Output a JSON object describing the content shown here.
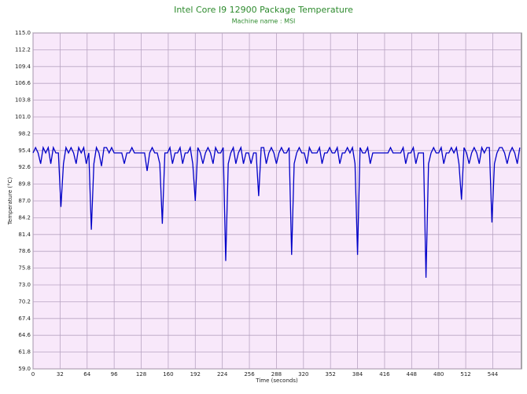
{
  "chart_data": {
    "type": "line",
    "title": "Intel Core I9 12900 Package Temperature",
    "subtitle": "Machine name : MSI",
    "xlabel": "Time (seconds)",
    "ylabel": "Temperature (°C)",
    "color": "#0000c8",
    "grid": true,
    "xlim": [
      0,
      578
    ],
    "ylim": [
      59,
      115
    ],
    "xticks": [
      0,
      32,
      64,
      96,
      128,
      160,
      192,
      224,
      256,
      288,
      320,
      352,
      384,
      416,
      448,
      480,
      512,
      544
    ],
    "yticks": [
      {
        "value": 59,
        "label": "59.0"
      },
      61.8,
      64.6,
      67.4,
      70.2,
      {
        "value": 73,
        "label": "73.0"
      },
      75.8,
      78.6,
      81.4,
      84.2,
      {
        "value": 87,
        "label": "87.0"
      },
      89.8,
      92.6,
      95.4,
      98.2,
      {
        "value": 101,
        "label": "101.0"
      },
      103.8,
      106.6,
      109.4,
      112.2,
      {
        "value": 115,
        "label": "115.0"
      }
    ],
    "x": [
      0,
      3,
      6,
      9,
      12,
      15,
      18,
      21,
      24,
      27,
      30,
      33,
      36,
      39,
      42,
      45,
      48,
      51,
      54,
      57,
      60,
      63,
      66,
      69,
      72,
      75,
      78,
      81,
      84,
      87,
      90,
      93,
      96,
      99,
      102,
      105,
      108,
      111,
      114,
      117,
      120,
      123,
      126,
      129,
      132,
      135,
      138,
      141,
      144,
      147,
      150,
      153,
      156,
      159,
      162,
      165,
      168,
      171,
      174,
      177,
      180,
      183,
      186,
      189,
      192,
      195,
      198,
      201,
      204,
      207,
      210,
      213,
      216,
      219,
      222,
      225,
      228,
      231,
      234,
      237,
      240,
      243,
      246,
      249,
      252,
      255,
      258,
      261,
      264,
      267,
      270,
      273,
      276,
      279,
      282,
      285,
      288,
      291,
      294,
      297,
      300,
      303,
      306,
      309,
      312,
      315,
      318,
      321,
      324,
      327,
      330,
      333,
      336,
      339,
      342,
      345,
      348,
      351,
      354,
      357,
      360,
      363,
      366,
      369,
      372,
      375,
      378,
      381,
      384,
      387,
      390,
      393,
      396,
      399,
      402,
      405,
      408,
      411,
      414,
      417,
      420,
      423,
      426,
      429,
      432,
      435,
      438,
      441,
      444,
      447,
      450,
      453,
      456,
      459,
      462,
      465,
      468,
      471,
      474,
      477,
      480,
      483,
      486,
      489,
      492,
      495,
      498,
      501,
      504,
      507,
      510,
      513,
      516,
      519,
      522,
      525,
      528,
      531,
      534,
      537,
      540,
      543,
      546,
      549,
      552,
      555,
      558,
      561,
      564,
      567,
      570,
      573,
      576
    ],
    "values": [
      95.0,
      95.9,
      95.0,
      93.2,
      95.9,
      95.0,
      95.9,
      93.2,
      95.9,
      95.0,
      95.0,
      86.0,
      93.2,
      95.9,
      95.0,
      95.9,
      95.0,
      93.2,
      95.9,
      95.0,
      95.9,
      93.2,
      95.0,
      82.2,
      93.2,
      95.9,
      95.0,
      92.8,
      95.9,
      95.9,
      95.0,
      95.9,
      95.0,
      95.0,
      95.0,
      95.0,
      93.2,
      95.0,
      95.0,
      95.9,
      95.0,
      95.0,
      95.0,
      95.0,
      95.0,
      92.0,
      95.0,
      95.9,
      95.0,
      95.0,
      93.2,
      83.2,
      95.0,
      95.0,
      95.9,
      93.2,
      95.0,
      95.0,
      95.9,
      93.2,
      95.0,
      95.0,
      95.9,
      93.2,
      87.0,
      95.9,
      95.0,
      93.2,
      95.0,
      95.9,
      95.0,
      93.2,
      95.9,
      95.0,
      95.0,
      95.9,
      77.0,
      93.2,
      95.0,
      95.9,
      93.2,
      95.0,
      95.9,
      93.2,
      95.0,
      95.0,
      93.2,
      95.0,
      95.0,
      87.8,
      95.9,
      95.9,
      93.2,
      95.0,
      95.9,
      95.0,
      93.2,
      95.0,
      95.9,
      95.0,
      95.0,
      95.9,
      78.0,
      93.2,
      95.0,
      95.9,
      95.0,
      95.0,
      93.2,
      95.9,
      95.0,
      95.0,
      95.0,
      95.9,
      93.2,
      95.0,
      95.0,
      95.9,
      95.0,
      95.0,
      95.9,
      93.2,
      95.0,
      95.0,
      95.9,
      95.0,
      95.9,
      93.2,
      78.0,
      95.9,
      95.0,
      95.0,
      95.9,
      93.2,
      95.0,
      95.0,
      95.0,
      95.0,
      95.0,
      95.0,
      95.0,
      95.9,
      95.0,
      95.0,
      95.0,
      95.0,
      95.9,
      93.2,
      95.0,
      95.0,
      95.9,
      93.2,
      95.0,
      95.0,
      95.0,
      74.2,
      93.2,
      95.0,
      95.9,
      95.0,
      95.0,
      95.9,
      93.2,
      95.0,
      95.0,
      95.9,
      95.0,
      95.9,
      93.2,
      87.2,
      95.9,
      95.0,
      93.2,
      95.0,
      95.9,
      95.0,
      93.2,
      95.9,
      95.0,
      95.9,
      95.9,
      83.4,
      93.2,
      95.0,
      95.9,
      95.9,
      95.0,
      93.2,
      95.0,
      95.9,
      95.0,
      93.2,
      95.9
    ]
  }
}
